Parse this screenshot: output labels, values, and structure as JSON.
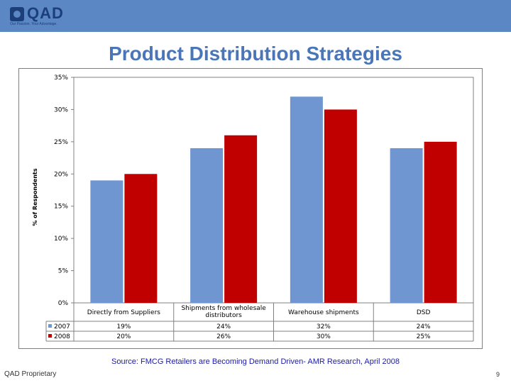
{
  "logo": {
    "brand": "QAD",
    "tagline": "Our Passion. Your Advantage."
  },
  "slide": {
    "title": "Product Distribution Strategies",
    "source": "Source: FMCG Retailers are Becoming Demand Driven- AMR Research, April 2008",
    "footer_left": "QAD Proprietary",
    "page_number": "9"
  },
  "colors": {
    "header": "#5b87c5",
    "title": "#4a76b8",
    "series_2007": "#6f96d1",
    "series_2008": "#c00000"
  },
  "chart_data": {
    "type": "bar",
    "title": "Product Distribution Strategies",
    "ylabel": "% of Respondents",
    "xlabel": "",
    "ylim": [
      0,
      35
    ],
    "yticks": [
      "0%",
      "5%",
      "10%",
      "15%",
      "20%",
      "25%",
      "30%",
      "35%"
    ],
    "categories": [
      "Directly from Suppliers",
      "Shipments from wholesale distributors",
      "Warehouse shipments",
      "DSD"
    ],
    "series": [
      {
        "name": "2007",
        "values": [
          19,
          24,
          32,
          24
        ],
        "labels": [
          "19%",
          "24%",
          "32%",
          "24%"
        ]
      },
      {
        "name": "2008",
        "values": [
          20,
          26,
          30,
          25
        ],
        "labels": [
          "20%",
          "26%",
          "30%",
          "25%"
        ]
      }
    ],
    "legend": "table-left",
    "grid": false
  }
}
